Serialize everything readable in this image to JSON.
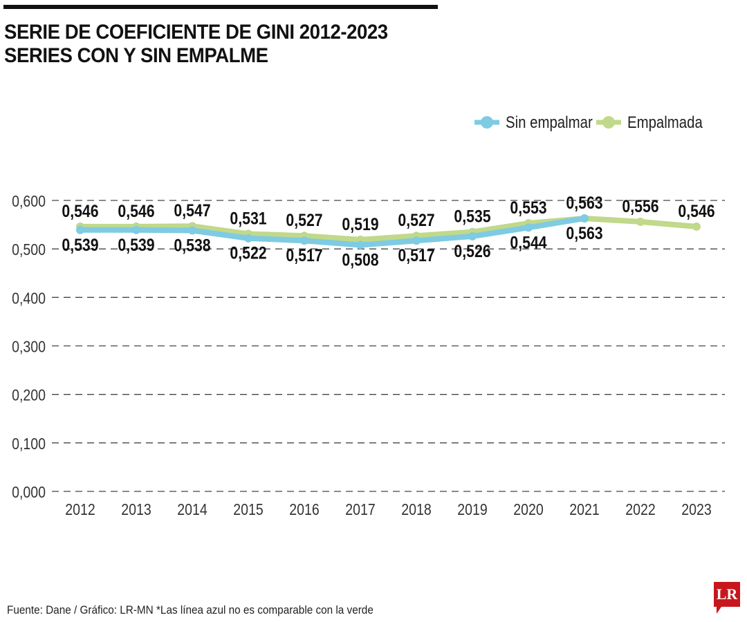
{
  "title_line1": "SERIE DE COEFICIENTE DE GINI 2012-2023",
  "title_line2": "SERIES CON Y SIN EMPALME",
  "source": "Fuente: Dane / Gráfico: LR-MN   *Las línea azul no es comparable con la verde",
  "logo": "LR",
  "chart_data": {
    "type": "line",
    "title": "SERIE DE COEFICIENTE DE GINI 2012-2023",
    "categories": [
      "2012",
      "2013",
      "2014",
      "2015",
      "2016",
      "2017",
      "2018",
      "2019",
      "2020",
      "2021",
      "2022",
      "2023"
    ],
    "ylim": [
      0,
      0.6
    ],
    "yticks": [
      "0,000",
      "0,100",
      "0,200",
      "0,300",
      "0,400",
      "0,500",
      "0,600"
    ],
    "grid": true,
    "legend_position": "top-right",
    "series": [
      {
        "name": "Sin empalmar",
        "color": "#7ecbe3",
        "values": [
          0.539,
          0.539,
          0.538,
          0.522,
          0.517,
          0.508,
          0.517,
          0.526,
          0.544,
          0.563,
          null,
          null
        ],
        "labels": [
          "0,539",
          "0,539",
          "0,538",
          "0,522",
          "0,517",
          "0,508",
          "0,517",
          "0,526",
          "0,544",
          "0,563",
          "",
          ""
        ]
      },
      {
        "name": "Empalmada",
        "color": "#c0d98a",
        "values": [
          0.546,
          0.546,
          0.547,
          0.531,
          0.527,
          0.519,
          0.527,
          0.535,
          0.553,
          0.563,
          0.556,
          0.546
        ],
        "labels": [
          "0,546",
          "0,546",
          "0,547",
          "0,531",
          "0,527",
          "0,519",
          "0,527",
          "0,535",
          "0,553",
          "0,563",
          "0,556",
          "0,546"
        ]
      }
    ]
  }
}
